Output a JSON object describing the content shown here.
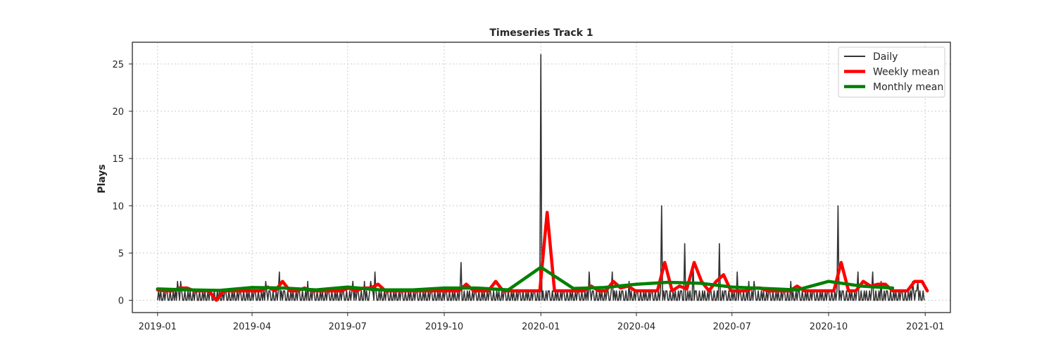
{
  "chart_data": {
    "type": "line",
    "title": "Timeseries Track 1",
    "xlabel": "",
    "ylabel": "Plays",
    "xlim": [
      "2018-12-08",
      "2021-01-25"
    ],
    "ylim": [
      -1.3,
      27.3
    ],
    "xticks": [
      "2019-01-01",
      "2019-04-01",
      "2019-07-01",
      "2019-10-01",
      "2020-01-01",
      "2020-04-01",
      "2020-07-01",
      "2020-10-01",
      "2021-01-01"
    ],
    "xtick_labels": [
      "2019-01",
      "2019-04",
      "2019-07",
      "2019-10",
      "2020-01",
      "2020-04",
      "2020-07",
      "2020-10",
      "2021-01"
    ],
    "yticks": [
      0,
      5,
      10,
      15,
      20,
      25
    ],
    "ytick_labels": [
      "0",
      "5",
      "10",
      "15",
      "20",
      "25"
    ],
    "grid": true,
    "legend_position": "top-right",
    "series": [
      {
        "name": "Daily",
        "color": "#333333",
        "daily_pattern": [
          0,
          1,
          0,
          1,
          0,
          0,
          1,
          0,
          1,
          1,
          0,
          0,
          1,
          0
        ],
        "start": "2019-01-01",
        "end": "2020-12-31",
        "peaks": [
          {
            "x": "2019-01-20",
            "y": 2
          },
          {
            "x": "2019-01-23",
            "y": 2
          },
          {
            "x": "2019-04-14",
            "y": 2
          },
          {
            "x": "2019-04-27",
            "y": 3
          },
          {
            "x": "2019-05-24",
            "y": 2
          },
          {
            "x": "2019-07-06",
            "y": 2
          },
          {
            "x": "2019-07-17",
            "y": 2
          },
          {
            "x": "2019-07-23",
            "y": 2
          },
          {
            "x": "2019-07-27",
            "y": 3
          },
          {
            "x": "2019-10-17",
            "y": 4
          },
          {
            "x": "2020-01-01",
            "y": 26
          },
          {
            "x": "2020-02-16",
            "y": 3
          },
          {
            "x": "2020-03-09",
            "y": 3
          },
          {
            "x": "2020-03-25",
            "y": 2
          },
          {
            "x": "2020-04-25",
            "y": 10
          },
          {
            "x": "2020-05-17",
            "y": 6
          },
          {
            "x": "2020-05-25",
            "y": 4
          },
          {
            "x": "2020-06-19",
            "y": 6
          },
          {
            "x": "2020-07-06",
            "y": 3
          },
          {
            "x": "2020-07-17",
            "y": 2
          },
          {
            "x": "2020-07-22",
            "y": 2
          },
          {
            "x": "2020-08-26",
            "y": 2
          },
          {
            "x": "2020-10-10",
            "y": 10
          },
          {
            "x": "2020-10-29",
            "y": 3
          },
          {
            "x": "2020-11-12",
            "y": 3
          },
          {
            "x": "2020-11-20",
            "y": 2
          },
          {
            "x": "2020-12-20",
            "y": 2
          },
          {
            "x": "2020-12-25",
            "y": 2
          }
        ]
      },
      {
        "name": "Weekly mean",
        "color": "#ff0000",
        "points": [
          {
            "x": "2019-01-01",
            "y": 1.1
          },
          {
            "x": "2019-01-08",
            "y": 1.0
          },
          {
            "x": "2019-01-15",
            "y": 1.0
          },
          {
            "x": "2019-01-22",
            "y": 1.3
          },
          {
            "x": "2019-01-29",
            "y": 1.3
          },
          {
            "x": "2019-02-05",
            "y": 1.0
          },
          {
            "x": "2019-02-12",
            "y": 1.0
          },
          {
            "x": "2019-02-19",
            "y": 1.0
          },
          {
            "x": "2019-02-26",
            "y": 0.0
          },
          {
            "x": "2019-03-05",
            "y": 1.0
          },
          {
            "x": "2019-03-12",
            "y": 1.0
          },
          {
            "x": "2019-03-19",
            "y": 1.0
          },
          {
            "x": "2019-03-26",
            "y": 1.0
          },
          {
            "x": "2019-04-02",
            "y": 1.0
          },
          {
            "x": "2019-04-09",
            "y": 1.0
          },
          {
            "x": "2019-04-16",
            "y": 1.4
          },
          {
            "x": "2019-04-23",
            "y": 1.0
          },
          {
            "x": "2019-04-30",
            "y": 2.0
          },
          {
            "x": "2019-05-07",
            "y": 1.0
          },
          {
            "x": "2019-05-14",
            "y": 1.0
          },
          {
            "x": "2019-05-21",
            "y": 1.3
          },
          {
            "x": "2019-05-28",
            "y": 1.0
          },
          {
            "x": "2019-06-04",
            "y": 1.0
          },
          {
            "x": "2019-06-11",
            "y": 1.0
          },
          {
            "x": "2019-06-18",
            "y": 1.0
          },
          {
            "x": "2019-06-25",
            "y": 1.0
          },
          {
            "x": "2019-07-02",
            "y": 1.3
          },
          {
            "x": "2019-07-09",
            "y": 1.0
          },
          {
            "x": "2019-07-16",
            "y": 1.3
          },
          {
            "x": "2019-07-23",
            "y": 1.3
          },
          {
            "x": "2019-07-30",
            "y": 1.7
          },
          {
            "x": "2019-08-06",
            "y": 1.0
          },
          {
            "x": "2019-08-13",
            "y": 1.0
          },
          {
            "x": "2019-08-20",
            "y": 1.0
          },
          {
            "x": "2019-08-27",
            "y": 1.0
          },
          {
            "x": "2019-09-03",
            "y": 1.0
          },
          {
            "x": "2019-09-10",
            "y": 1.0
          },
          {
            "x": "2019-09-17",
            "y": 1.0
          },
          {
            "x": "2019-09-24",
            "y": 1.0
          },
          {
            "x": "2019-10-01",
            "y": 1.0
          },
          {
            "x": "2019-10-08",
            "y": 1.0
          },
          {
            "x": "2019-10-15",
            "y": 1.0
          },
          {
            "x": "2019-10-22",
            "y": 1.7
          },
          {
            "x": "2019-10-29",
            "y": 1.0
          },
          {
            "x": "2019-11-05",
            "y": 1.0
          },
          {
            "x": "2019-11-12",
            "y": 1.0
          },
          {
            "x": "2019-11-19",
            "y": 2.0
          },
          {
            "x": "2019-11-26",
            "y": 1.0
          },
          {
            "x": "2019-12-03",
            "y": 1.0
          },
          {
            "x": "2019-12-10",
            "y": 1.0
          },
          {
            "x": "2019-12-17",
            "y": 1.0
          },
          {
            "x": "2019-12-24",
            "y": 1.0
          },
          {
            "x": "2019-12-31",
            "y": 1.0
          },
          {
            "x": "2020-01-07",
            "y": 9.3
          },
          {
            "x": "2020-01-14",
            "y": 1.0
          },
          {
            "x": "2020-01-21",
            "y": 1.0
          },
          {
            "x": "2020-01-28",
            "y": 1.0
          },
          {
            "x": "2020-02-04",
            "y": 1.0
          },
          {
            "x": "2020-02-11",
            "y": 1.0
          },
          {
            "x": "2020-02-18",
            "y": 1.5
          },
          {
            "x": "2020-02-25",
            "y": 1.0
          },
          {
            "x": "2020-03-03",
            "y": 1.0
          },
          {
            "x": "2020-03-10",
            "y": 2.0
          },
          {
            "x": "2020-03-17",
            "y": 1.3
          },
          {
            "x": "2020-03-24",
            "y": 1.5
          },
          {
            "x": "2020-03-31",
            "y": 1.0
          },
          {
            "x": "2020-04-07",
            "y": 1.0
          },
          {
            "x": "2020-04-14",
            "y": 1.0
          },
          {
            "x": "2020-04-21",
            "y": 1.0
          },
          {
            "x": "2020-04-28",
            "y": 4.0
          },
          {
            "x": "2020-05-05",
            "y": 1.0
          },
          {
            "x": "2020-05-12",
            "y": 1.5
          },
          {
            "x": "2020-05-19",
            "y": 1.2
          },
          {
            "x": "2020-05-26",
            "y": 4.0
          },
          {
            "x": "2020-06-02",
            "y": 2.0
          },
          {
            "x": "2020-06-09",
            "y": 1.0
          },
          {
            "x": "2020-06-16",
            "y": 2.0
          },
          {
            "x": "2020-06-23",
            "y": 2.7
          },
          {
            "x": "2020-06-30",
            "y": 1.0
          },
          {
            "x": "2020-07-07",
            "y": 1.0
          },
          {
            "x": "2020-07-14",
            "y": 1.0
          },
          {
            "x": "2020-07-21",
            "y": 1.3
          },
          {
            "x": "2020-07-28",
            "y": 1.3
          },
          {
            "x": "2020-08-04",
            "y": 1.0
          },
          {
            "x": "2020-08-11",
            "y": 1.0
          },
          {
            "x": "2020-08-18",
            "y": 1.0
          },
          {
            "x": "2020-08-25",
            "y": 1.0
          },
          {
            "x": "2020-09-01",
            "y": 1.5
          },
          {
            "x": "2020-09-08",
            "y": 1.0
          },
          {
            "x": "2020-09-15",
            "y": 1.0
          },
          {
            "x": "2020-09-22",
            "y": 1.0
          },
          {
            "x": "2020-09-29",
            "y": 1.0
          },
          {
            "x": "2020-10-06",
            "y": 1.0
          },
          {
            "x": "2020-10-13",
            "y": 4.0
          },
          {
            "x": "2020-10-20",
            "y": 1.0
          },
          {
            "x": "2020-10-27",
            "y": 1.0
          },
          {
            "x": "2020-11-03",
            "y": 2.0
          },
          {
            "x": "2020-11-10",
            "y": 1.5
          },
          {
            "x": "2020-11-17",
            "y": 1.7
          },
          {
            "x": "2020-11-24",
            "y": 1.7
          },
          {
            "x": "2020-12-01",
            "y": 1.0
          },
          {
            "x": "2020-12-08",
            "y": 1.0
          },
          {
            "x": "2020-12-15",
            "y": 1.0
          },
          {
            "x": "2020-12-22",
            "y": 2.0
          },
          {
            "x": "2020-12-29",
            "y": 2.0
          },
          {
            "x": "2021-01-03",
            "y": 1.0
          }
        ]
      },
      {
        "name": "Monthly mean",
        "color": "#008000",
        "points": [
          {
            "x": "2019-01-01",
            "y": 1.2
          },
          {
            "x": "2019-02-01",
            "y": 1.1
          },
          {
            "x": "2019-03-01",
            "y": 1.05
          },
          {
            "x": "2019-04-01",
            "y": 1.35
          },
          {
            "x": "2019-05-01",
            "y": 1.3
          },
          {
            "x": "2019-06-01",
            "y": 1.1
          },
          {
            "x": "2019-07-01",
            "y": 1.4
          },
          {
            "x": "2019-08-01",
            "y": 1.1
          },
          {
            "x": "2019-09-01",
            "y": 1.1
          },
          {
            "x": "2019-10-01",
            "y": 1.3
          },
          {
            "x": "2019-11-01",
            "y": 1.3
          },
          {
            "x": "2019-12-01",
            "y": 1.1
          },
          {
            "x": "2020-01-01",
            "y": 3.5
          },
          {
            "x": "2020-02-01",
            "y": 1.25
          },
          {
            "x": "2020-03-01",
            "y": 1.35
          },
          {
            "x": "2020-04-01",
            "y": 1.7
          },
          {
            "x": "2020-05-01",
            "y": 1.9
          },
          {
            "x": "2020-06-01",
            "y": 1.8
          },
          {
            "x": "2020-07-01",
            "y": 1.4
          },
          {
            "x": "2020-08-01",
            "y": 1.25
          },
          {
            "x": "2020-09-01",
            "y": 1.1
          },
          {
            "x": "2020-10-01",
            "y": 2.0
          },
          {
            "x": "2020-11-01",
            "y": 1.5
          },
          {
            "x": "2020-12-01",
            "y": 1.3
          }
        ]
      }
    ]
  }
}
